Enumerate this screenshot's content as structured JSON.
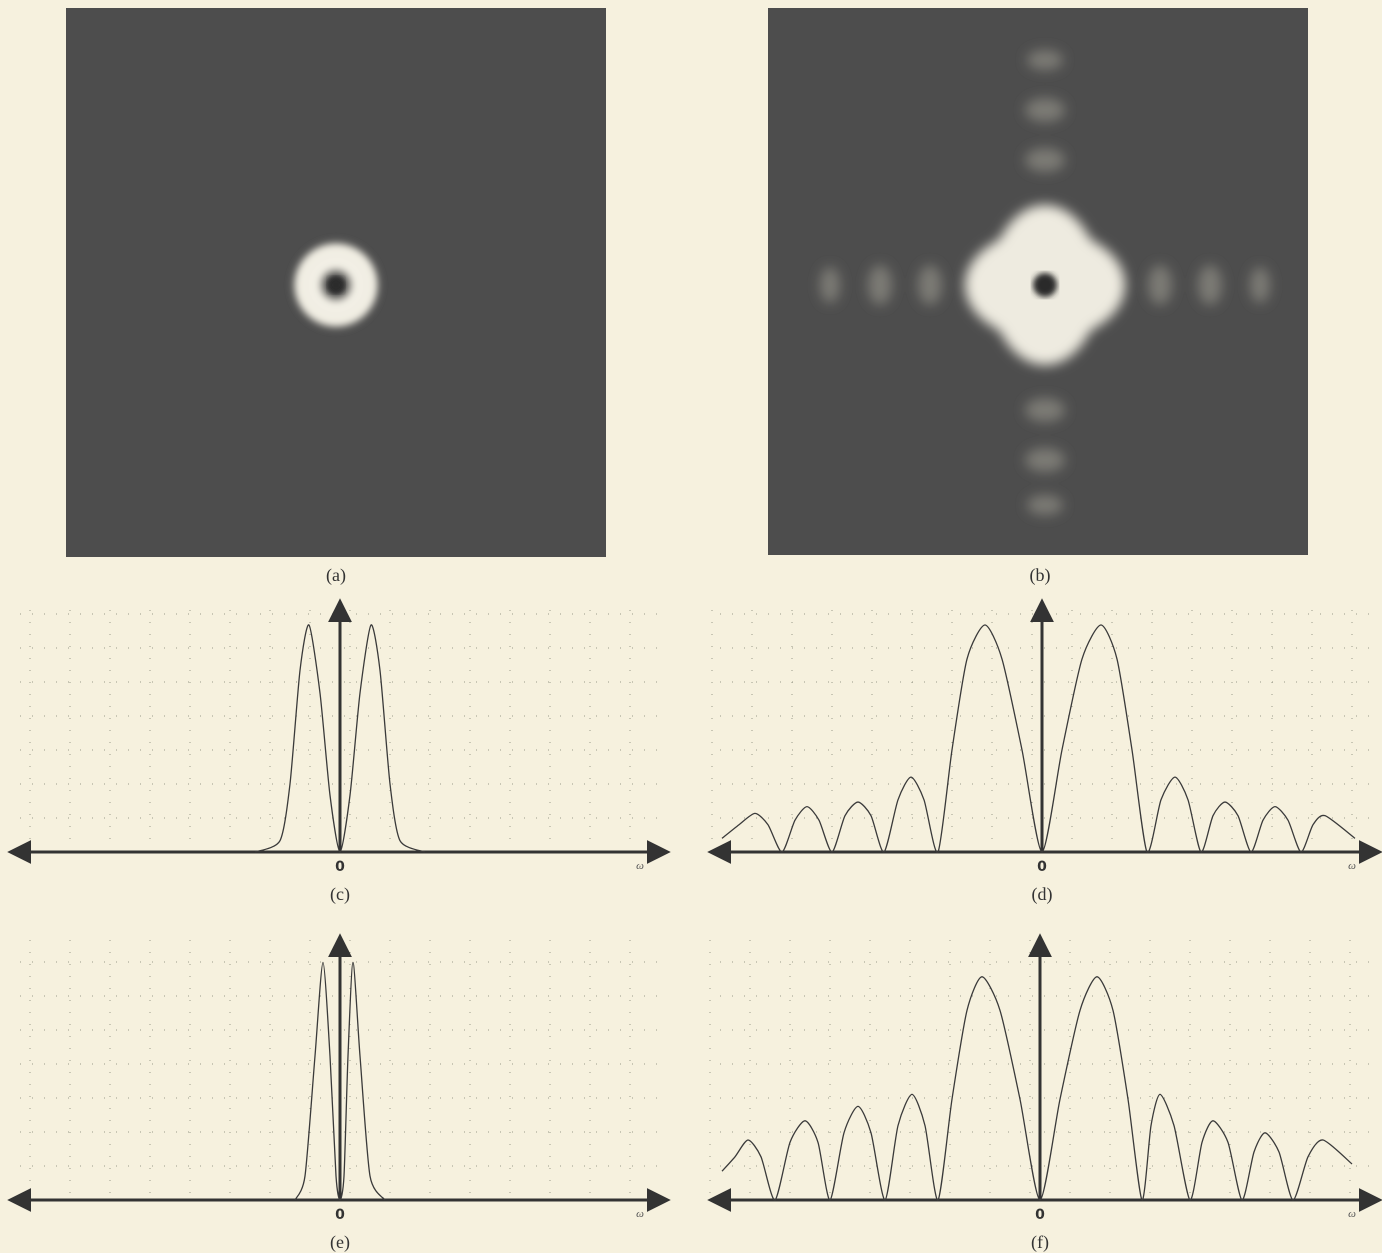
{
  "images": [
    {
      "label": "(a)"
    },
    {
      "label": "(b)"
    }
  ],
  "chart_data": [
    {
      "type": "line",
      "label": "(c)",
      "origin_label": "0",
      "x_label": "ω",
      "color": "#3a3a3a",
      "xlim": [
        -33,
        32.8
      ],
      "ylim": [
        0,
        1
      ],
      "x": [
        -8.5,
        -6,
        -5,
        -4,
        -3.1,
        -2,
        -1,
        0,
        1,
        2,
        3.1,
        4,
        5,
        6,
        8.5
      ],
      "values": [
        0,
        0.05,
        0.3,
        0.8,
        1,
        0.7,
        0.25,
        0,
        0.25,
        0.7,
        1,
        0.8,
        0.3,
        0.05,
        0
      ]
    },
    {
      "type": "line",
      "label": "(d)",
      "origin_label": "0",
      "x_label": "ω",
      "color": "#3a3a3a",
      "xlim": [
        -33.2,
        33.8
      ],
      "ylim": [
        0,
        1
      ],
      "x": [
        -32,
        -30.3,
        -28.7,
        -27.4,
        -26,
        -24.7,
        -23.5,
        -22.3,
        -21,
        -19.7,
        -18.4,
        -17.1,
        -15.8,
        -14.4,
        -13.1,
        -11.8,
        -10.4,
        -9,
        -7.5,
        -5.7,
        -4,
        -2,
        0,
        2,
        4,
        5.9,
        7.5,
        9,
        10.5,
        11.9,
        13.3,
        14.6,
        15.9,
        17.1,
        18.3,
        19.6,
        20.9,
        22.1,
        23.3,
        24.6,
        25.9,
        27.1,
        28.3,
        31.3
      ],
      "values": [
        0.06,
        0.12,
        0.17,
        0.12,
        0,
        0.14,
        0.2,
        0.14,
        0,
        0.16,
        0.22,
        0.16,
        0,
        0.23,
        0.33,
        0.23,
        0,
        0.45,
        0.85,
        1,
        0.85,
        0.45,
        0,
        0.45,
        0.85,
        1,
        0.85,
        0.45,
        0,
        0.23,
        0.33,
        0.23,
        0,
        0.16,
        0.22,
        0.16,
        0,
        0.14,
        0.2,
        0.14,
        0,
        0.12,
        0.16,
        0.06
      ]
    },
    {
      "type": "line",
      "label": "(e)",
      "origin_label": "0",
      "x_label": "ω",
      "color": "#3a3a3a",
      "xlim": [
        -33,
        32.8
      ],
      "ylim": [
        0,
        1
      ],
      "x": [
        -4.5,
        -3.5,
        -2.5,
        -1.7,
        -1,
        -0.4,
        0,
        0.4,
        0.8,
        1.3,
        2,
        3,
        4.5
      ],
      "values": [
        0,
        0.1,
        0.6,
        0.99,
        0.6,
        0.1,
        0,
        0.1,
        0.6,
        0.99,
        0.6,
        0.1,
        0
      ]
    },
    {
      "type": "line",
      "label": "(f)",
      "origin_label": "0",
      "x_label": "ω",
      "color": "#3a3a3a",
      "xlim": [
        -33,
        34
      ],
      "ylim": [
        0,
        1
      ],
      "x": [
        -31.8,
        -30.5,
        -29.2,
        -27.9,
        -26.5,
        -25,
        -23.5,
        -22.2,
        -21,
        -19.6,
        -18.2,
        -16.9,
        -15.5,
        -14.2,
        -12.8,
        -11.5,
        -10.2,
        -8.8,
        -7.3,
        -5.8,
        -4,
        -2,
        0,
        2,
        4,
        5.7,
        7.3,
        8.8,
        10.2,
        11.1,
        12,
        13.4,
        15,
        16.2,
        17.3,
        18.8,
        20.2,
        21.4,
        22.5,
        23.9,
        25.3,
        26.8,
        28.3,
        31.2
      ],
      "values": [
        0.12,
        0.18,
        0.25,
        0.18,
        0,
        0.24,
        0.33,
        0.24,
        0,
        0.28,
        0.39,
        0.28,
        0,
        0.31,
        0.44,
        0.31,
        0,
        0.42,
        0.79,
        0.93,
        0.79,
        0.42,
        0,
        0.42,
        0.79,
        0.93,
        0.79,
        0.42,
        0,
        0.31,
        0.44,
        0.31,
        0,
        0.24,
        0.33,
        0.24,
        0,
        0.2,
        0.28,
        0.2,
        0,
        0.18,
        0.25,
        0.15
      ]
    }
  ]
}
